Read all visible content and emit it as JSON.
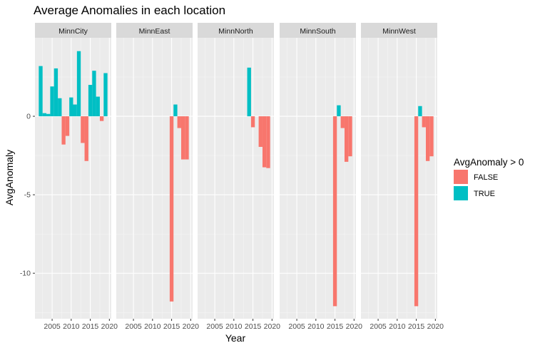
{
  "chart_data": {
    "type": "bar",
    "title": "Average Anomalies in each location",
    "xlabel": "Year",
    "ylabel": "AvgAnomaly",
    "xlim": [
      2000.5,
      2020.5
    ],
    "ylim": [
      -12.9,
      5.0
    ],
    "x_ticks": [
      2005,
      2010,
      2015,
      2020
    ],
    "y_ticks": [
      0,
      -5,
      -10
    ],
    "grid": true,
    "legend": {
      "title": "AvgAnomaly > 0",
      "position": "right",
      "entries": [
        {
          "label": "FALSE",
          "color": "#F8766D"
        },
        {
          "label": "TRUE",
          "color": "#00BFC4"
        }
      ]
    },
    "panels": [
      {
        "name": "MinnCity",
        "x": [
          2002,
          2003,
          2004,
          2005,
          2006,
          2007,
          2008,
          2009,
          2010,
          2011,
          2012,
          2013,
          2014,
          2015,
          2016,
          2017,
          2018,
          2019
        ],
        "values": [
          3.2,
          0.2,
          0.15,
          1.9,
          3.05,
          1.15,
          -1.8,
          -1.25,
          1.2,
          0.75,
          4.15,
          -1.7,
          -2.85,
          2.0,
          2.9,
          1.25,
          -0.3,
          2.75
        ]
      },
      {
        "name": "MinnEast",
        "x": [
          2015,
          2016,
          2017,
          2018,
          2019
        ],
        "values": [
          -11.8,
          0.75,
          -0.75,
          -2.75,
          -2.75
        ]
      },
      {
        "name": "MinnNorth",
        "x": [
          2014,
          2015,
          2016,
          2017,
          2018,
          2019
        ],
        "values": [
          3.1,
          -0.7,
          0,
          -1.95,
          -3.25,
          -3.3
        ]
      },
      {
        "name": "MinnSouth",
        "x": [
          2015,
          2016,
          2017,
          2018,
          2019
        ],
        "values": [
          -12.1,
          0.7,
          -0.75,
          -2.9,
          -2.55
        ]
      },
      {
        "name": "MinnWest",
        "x": [
          2015,
          2016,
          2017,
          2018,
          2019
        ],
        "values": [
          -12.1,
          0.65,
          -0.7,
          -2.85,
          -2.55
        ]
      }
    ]
  }
}
